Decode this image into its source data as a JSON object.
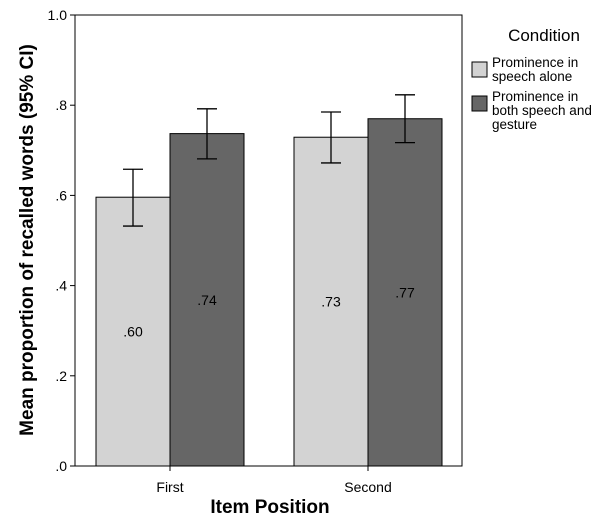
{
  "chart_data": {
    "type": "bar",
    "title": "",
    "xlabel": "Item Position",
    "ylabel": "Mean proportion of recalled words (95% CI)",
    "ylim": [
      0,
      1.0
    ],
    "yticks": [
      0.0,
      0.2,
      0.4,
      0.6,
      0.8,
      1.0
    ],
    "ytick_labels": [
      ".0",
      ".2",
      ".4",
      ".6",
      ".8",
      "1.0"
    ],
    "categories": [
      "First",
      "Second"
    ],
    "legend_title": "Condition",
    "legend_position": "right",
    "series": [
      {
        "name": "Prominence in speech alone",
        "legend_lines": [
          "Prominence in",
          "speech alone"
        ],
        "color": "#d3d3d3",
        "values": [
          0.596,
          0.729
        ],
        "labels": [
          ".60",
          ".73"
        ],
        "ci_low": [
          0.532,
          0.672
        ],
        "ci_high": [
          0.658,
          0.785
        ]
      },
      {
        "name": "Prominence in both speech and gesture",
        "legend_lines": [
          "Prominence in",
          "both speech and",
          "gesture"
        ],
        "color": "#666666",
        "values": [
          0.737,
          0.77
        ],
        "labels": [
          ".74",
          ".77"
        ],
        "ci_low": [
          0.681,
          0.717
        ],
        "ci_high": [
          0.792,
          0.823
        ]
      }
    ]
  }
}
